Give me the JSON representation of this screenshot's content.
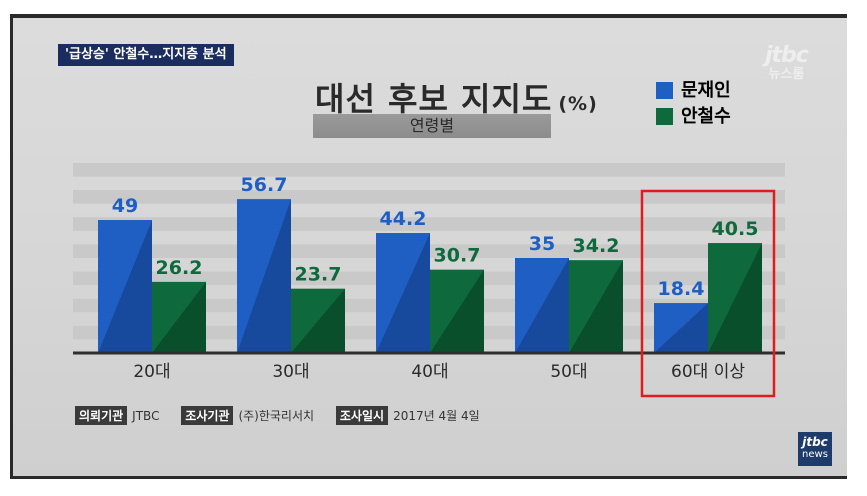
{
  "header": {
    "tag": "'급상승' 안철수…지지층 분석",
    "title": "대선 후보 지지도",
    "unit": "(%)",
    "subtitle": "연령별"
  },
  "logo": {
    "main": "jtbc",
    "sub": "뉴스룸"
  },
  "colors": {
    "moon": "#1f5fc4",
    "ahn": "#0e6a3c",
    "highlight": "#e11b1b",
    "baseline": "#2e2e2e"
  },
  "chart_data": {
    "type": "bar",
    "title": "대선 후보 지지도 (%)",
    "subtitle": "연령별",
    "categories": [
      "20대",
      "30대",
      "40대",
      "50대",
      "60대 이상"
    ],
    "series": [
      {
        "name": "문재인",
        "values": [
          49,
          56.7,
          44.2,
          35,
          18.4
        ]
      },
      {
        "name": "안철수",
        "values": [
          26.2,
          23.7,
          30.7,
          34.2,
          40.5
        ]
      }
    ],
    "value_labels": [
      [
        "49",
        "56.7",
        "44.2",
        "35",
        "18.4"
      ],
      [
        "26.2",
        "23.7",
        "30.7",
        "34.2",
        "40.5"
      ]
    ],
    "highlighted_category": "60대 이상",
    "ylim": [
      0,
      70
    ],
    "grid": true,
    "legend_position": "top-right"
  },
  "footer": {
    "items": [
      {
        "tag": "의뢰기관",
        "value": "JTBC"
      },
      {
        "tag": "조사기관",
        "value": "(주)한국리서치"
      },
      {
        "tag": "조사일시",
        "value": "2017년 4월 4일"
      }
    ]
  },
  "badge": {
    "main": "jtbc",
    "sub": "news"
  }
}
